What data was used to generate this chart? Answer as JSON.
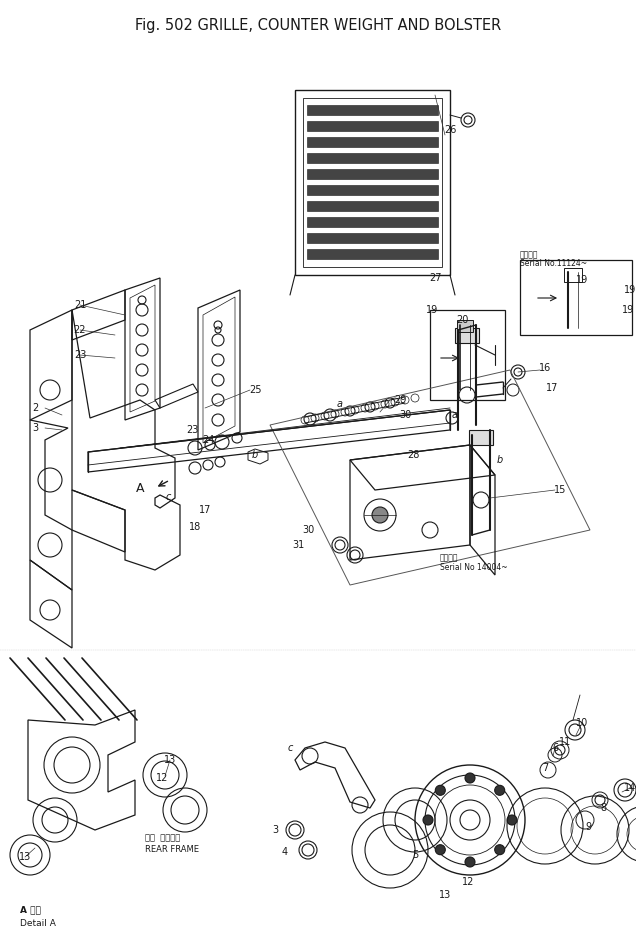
{
  "title": "Fig. 502 GRILLE, COUNTER WEIGHT AND BOLSTER",
  "bg_color": "#ffffff",
  "line_color": "#1a1a1a",
  "text_color": "#1a1a1a",
  "fig_width": 6.36,
  "fig_height": 9.4,
  "dpi": 100,
  "title_fs": 10.5,
  "note1_text1": "適用号等",
  "note1_text2": "Serial No.11124~",
  "note2_text1": "適用号等",
  "note2_text2": "Serial No 14004~",
  "rear_frame_jp": "リヤ  フレーム",
  "rear_frame_en": "REAR FRAME",
  "detail_a_jp": "A 詳細",
  "detail_a_en": "Detail A"
}
